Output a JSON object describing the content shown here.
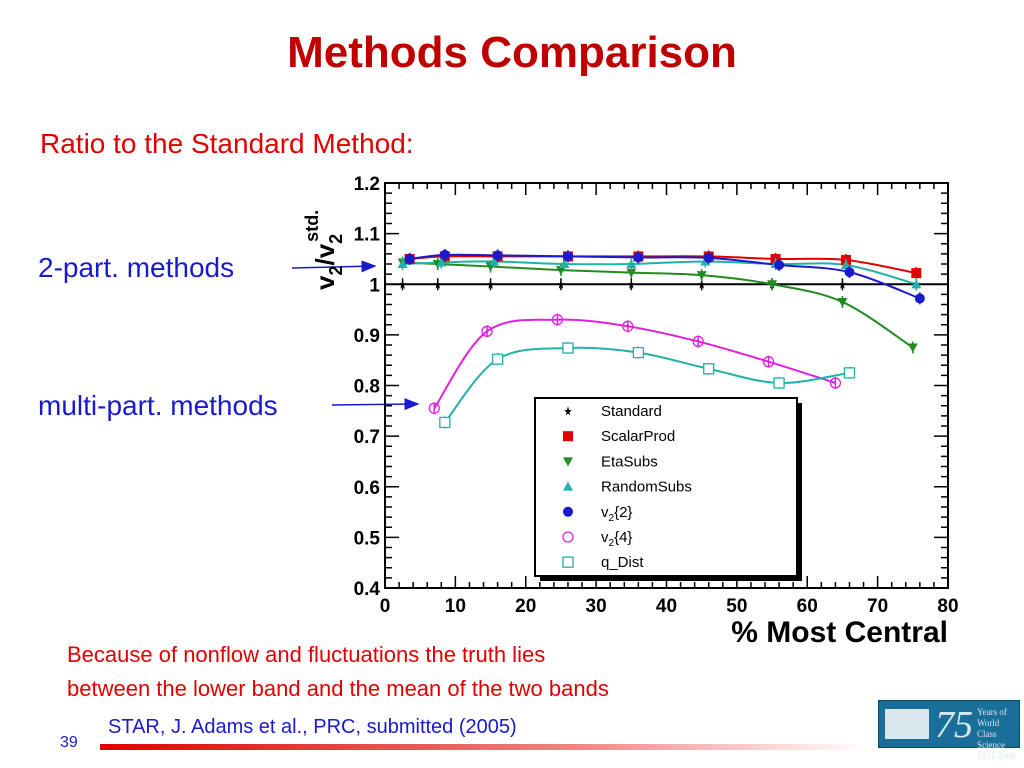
{
  "slide": {
    "title": "Methods Comparison",
    "subtitle": "Ratio to the Standard Method:",
    "label_2part": "2-part. methods",
    "label_multi": "multi-part. methods",
    "note_line1": "Because of nonflow and fluctuations the truth lies",
    "note_line2": "between the lower band and the mean of the two bands",
    "citation": "STAR, J. Adams et al., PRC, submitted (2005)",
    "page_number": "39",
    "logo_number": "75",
    "logo_text": "Years of World Class Science 1931-2006"
  },
  "colors": {
    "title": "#c00000",
    "text_red": "#e00000",
    "text_blue": "#1a1acd"
  },
  "chart_data": {
    "type": "scatter",
    "xlabel": "% Most Central",
    "ylabel": "v2/v2std.",
    "xlim": [
      0,
      80
    ],
    "ylim": [
      0.4,
      1.2
    ],
    "xticks": [
      "0",
      "10",
      "20",
      "30",
      "40",
      "50",
      "60",
      "70",
      "80"
    ],
    "yticks": [
      "0.4",
      "0.5",
      "0.6",
      "0.7",
      "0.8",
      "0.9",
      "1",
      "1.1",
      "1.2"
    ],
    "grid": false,
    "legend_position": "lower-right",
    "series": [
      {
        "name": "Standard",
        "marker": "star",
        "color": "#000000",
        "x": [
          2.5,
          7.5,
          15,
          25,
          35,
          45,
          55,
          65,
          75.5
        ],
        "y": [
          1.0,
          1.0,
          1.0,
          1.0,
          1.0,
          1.0,
          1.0,
          1.0,
          1.0
        ]
      },
      {
        "name": "ScalarProd",
        "marker": "square",
        "color": "#e00000",
        "x": [
          3.5,
          8.5,
          16,
          26,
          36,
          46,
          55.5,
          65.5,
          75.5
        ],
        "y": [
          1.05,
          1.055,
          1.055,
          1.055,
          1.055,
          1.055,
          1.05,
          1.048,
          1.022
        ]
      },
      {
        "name": "EtaSubs",
        "marker": "triangle-down",
        "color": "#228b22",
        "x": [
          2.5,
          7.5,
          15,
          25,
          35,
          45,
          55,
          65,
          75
        ],
        "y": [
          1.043,
          1.04,
          1.035,
          1.028,
          1.023,
          1.018,
          1.0,
          0.965,
          0.875
        ]
      },
      {
        "name": "RandomSubs",
        "marker": "triangle-up",
        "color": "#20b2aa",
        "x": [
          2.5,
          8,
          15.5,
          25.5,
          35,
          45.5,
          55.5,
          65.5,
          75.5
        ],
        "y": [
          1.04,
          1.043,
          1.045,
          1.04,
          1.04,
          1.045,
          1.04,
          1.038,
          1.0
        ]
      },
      {
        "name": "v2{2}",
        "marker": "circle",
        "color": "#1a1acd",
        "x": [
          3.5,
          8.5,
          16,
          26,
          36,
          46,
          56,
          66,
          76
        ],
        "y": [
          1.05,
          1.058,
          1.057,
          1.055,
          1.053,
          1.052,
          1.038,
          1.024,
          0.972
        ]
      },
      {
        "name": "v2{4}",
        "marker": "open-circle",
        "color": "#e020e0",
        "x": [
          7,
          14.5,
          24.5,
          34.5,
          44.5,
          54.5,
          64
        ],
        "y": [
          0.755,
          0.907,
          0.93,
          0.917,
          0.887,
          0.847,
          0.805
        ]
      },
      {
        "name": "q_Dist",
        "marker": "open-square",
        "color": "#20b2aa",
        "x": [
          8.5,
          16,
          26,
          36,
          46,
          56,
          66
        ],
        "y": [
          0.727,
          0.852,
          0.874,
          0.865,
          0.833,
          0.805,
          0.825
        ]
      }
    ]
  }
}
